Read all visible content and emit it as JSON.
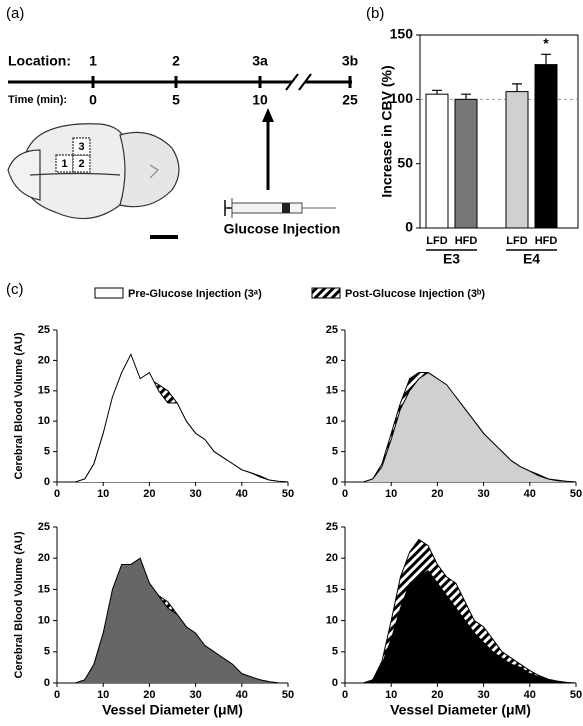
{
  "panel_labels": [
    "(a)",
    "(b)",
    "(c)"
  ],
  "timeline": {
    "location_label": "Location:",
    "time_label": "Time (min):",
    "locations": [
      "1",
      "2",
      "3a",
      "3b"
    ],
    "times": [
      0,
      5,
      10,
      25
    ]
  },
  "brain": {
    "regions": [
      "1",
      "2",
      "3"
    ]
  },
  "injection": {
    "label": "Glucose Injection"
  },
  "chart_data": [
    {
      "type": "bar",
      "ylabel": "Increase in CBV (%)",
      "ylim": [
        0,
        150
      ],
      "yticks": [
        0,
        50,
        100,
        150
      ],
      "categories": [
        "LFD",
        "HFD",
        "LFD",
        "HFD"
      ],
      "group_labels": [
        "E3",
        "E4"
      ],
      "values": [
        104,
        100,
        106,
        127
      ],
      "errors": [
        3,
        4,
        6,
        8
      ],
      "colors": [
        "#ffffff",
        "#777777",
        "#d0d0d0",
        "#000000"
      ],
      "reference_line": 100,
      "annotations": [
        {
          "text": "*",
          "category": 3
        }
      ]
    },
    {
      "type": "area",
      "ylabel": "Cerebral Blood Volume (AU)",
      "fill": "#ffffff",
      "xlim": [
        0,
        50
      ],
      "xticks": [
        0,
        10,
        20,
        30,
        40,
        50
      ],
      "ylim": [
        0,
        25
      ],
      "yticks": [
        0,
        5,
        10,
        15,
        20,
        25
      ],
      "x": [
        0,
        2,
        4,
        6,
        8,
        10,
        12,
        14,
        16,
        18,
        20,
        22,
        24,
        26,
        28,
        30,
        32,
        34,
        36,
        38,
        40,
        42,
        44,
        46,
        48,
        50
      ],
      "series": [
        {
          "name": "Post-Glucose Injection (3ᵇ)",
          "pattern": "hatch",
          "values": [
            0,
            0,
            0,
            0.5,
            3,
            8,
            13,
            18,
            20,
            17,
            17,
            16,
            15,
            13,
            10,
            8,
            7,
            5,
            4,
            3,
            2,
            1.5,
            1,
            0.3,
            0.1,
            0
          ]
        },
        {
          "name": "Pre-Glucose Injection (3ᵃ)",
          "values": [
            0,
            0,
            0,
            0.5,
            3,
            8,
            14,
            18,
            21,
            17,
            18,
            15,
            13,
            13,
            10,
            8,
            7,
            5,
            4,
            3,
            2,
            1.5,
            0.8,
            0.3,
            0.1,
            0
          ]
        }
      ]
    },
    {
      "type": "area",
      "fill": "#d0d0d0",
      "xlim": [
        0,
        50
      ],
      "xticks": [
        0,
        10,
        20,
        30,
        40,
        50
      ],
      "ylim": [
        0,
        25
      ],
      "yticks": [
        0,
        5,
        10,
        15,
        20,
        25
      ],
      "x": [
        0,
        2,
        4,
        6,
        8,
        10,
        12,
        14,
        16,
        18,
        20,
        22,
        24,
        26,
        28,
        30,
        32,
        34,
        36,
        38,
        40,
        42,
        44,
        46,
        48,
        50
      ],
      "series": [
        {
          "pattern": "hatch",
          "values": [
            0,
            0,
            0,
            0.5,
            3,
            8,
            13,
            17,
            18,
            18,
            17,
            15,
            14,
            12,
            10,
            8,
            6,
            5,
            3.5,
            2.5,
            1.8,
            1.2,
            0.5,
            0.3,
            0.1,
            0
          ]
        },
        {
          "values": [
            0,
            0,
            0,
            0.5,
            2.5,
            7,
            12,
            15,
            17,
            18,
            17,
            16,
            14,
            12,
            10,
            8,
            6.5,
            5,
            3.5,
            2.5,
            1.8,
            1,
            0.5,
            0.2,
            0.1,
            0
          ]
        }
      ]
    },
    {
      "type": "area",
      "ylabel": "Cerebral Blood Volume (AU)",
      "xlabel": "Vessel Diameter (μM)",
      "fill": "#666666",
      "xlim": [
        0,
        50
      ],
      "xticks": [
        0,
        10,
        20,
        30,
        40,
        50
      ],
      "ylim": [
        0,
        25
      ],
      "yticks": [
        0,
        5,
        10,
        15,
        20,
        25
      ],
      "x": [
        0,
        2,
        4,
        6,
        8,
        10,
        12,
        14,
        16,
        18,
        20,
        22,
        24,
        26,
        28,
        30,
        32,
        34,
        36,
        38,
        40,
        42,
        44,
        46,
        48,
        50
      ],
      "series": [
        {
          "pattern": "hatch",
          "values": [
            0,
            0,
            0,
            0.5,
            3,
            8,
            14,
            18,
            19,
            19,
            16,
            14,
            13,
            11,
            9,
            7,
            6,
            5,
            3.5,
            2.5,
            1.5,
            0.8,
            0.5,
            0.2,
            0,
            0
          ]
        },
        {
          "values": [
            0,
            0,
            0,
            0.5,
            3,
            8,
            15,
            19,
            19,
            20,
            16,
            14,
            12,
            11,
            9,
            8,
            6,
            5,
            4,
            3,
            1.5,
            1,
            0.5,
            0.2,
            0,
            0
          ]
        }
      ]
    },
    {
      "type": "area",
      "xlabel": "Vessel Diameter (μM)",
      "fill": "#000000",
      "xlim": [
        0,
        50
      ],
      "xticks": [
        0,
        10,
        20,
        30,
        40,
        50
      ],
      "ylim": [
        0,
        25
      ],
      "yticks": [
        0,
        5,
        10,
        15,
        20,
        25
      ],
      "x": [
        0,
        2,
        4,
        6,
        8,
        10,
        12,
        14,
        16,
        18,
        20,
        22,
        24,
        26,
        28,
        30,
        32,
        34,
        36,
        38,
        40,
        42,
        44,
        46,
        48,
        50
      ],
      "series": [
        {
          "pattern": "hatch",
          "values": [
            0,
            0,
            0,
            0.5,
            3.5,
            10,
            17,
            21,
            23,
            22,
            19,
            17,
            16,
            13,
            10,
            9,
            7,
            5,
            4,
            3,
            2,
            1.2,
            0.6,
            0.3,
            0.1,
            0
          ]
        },
        {
          "values": [
            0,
            0,
            0,
            0.5,
            3,
            7,
            12,
            16,
            17,
            18,
            16,
            14,
            12,
            10,
            8,
            6.5,
            5,
            4,
            3,
            2.5,
            1.5,
            1,
            0.5,
            0.2,
            0,
            0
          ]
        }
      ]
    }
  ]
}
